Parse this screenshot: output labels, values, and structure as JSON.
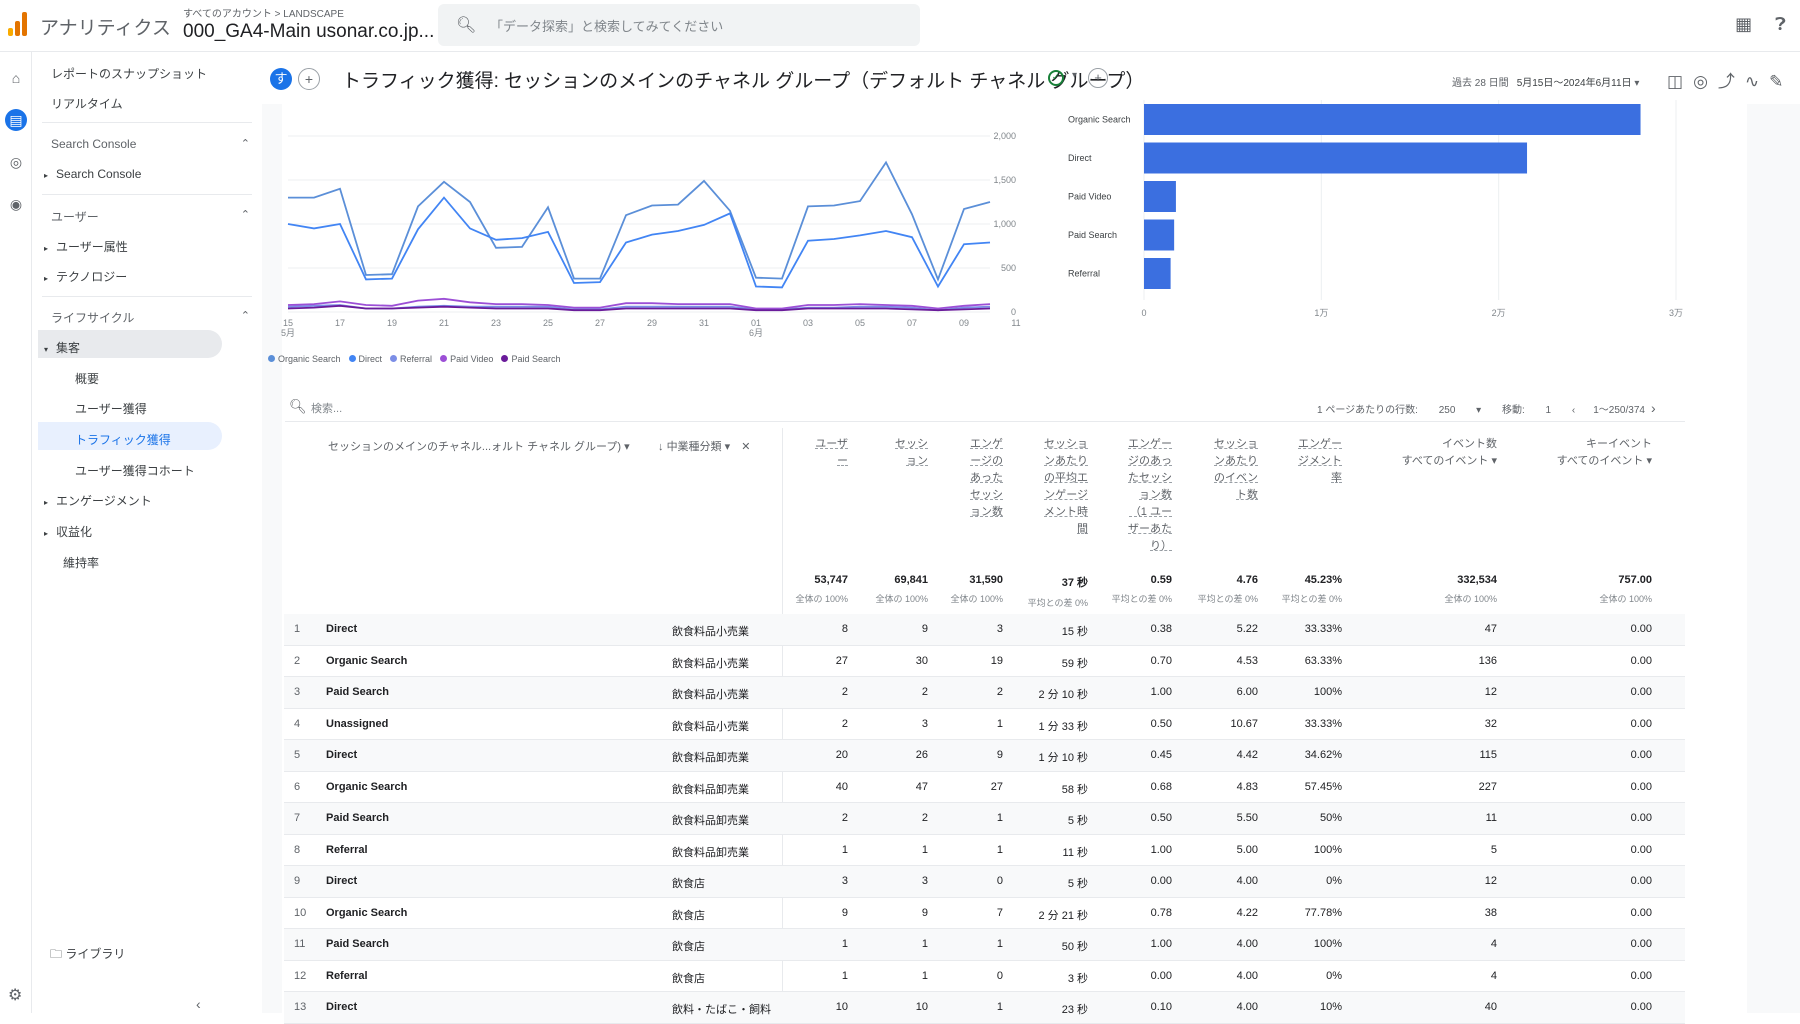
{
  "app": {
    "name": "アナリティクス",
    "breadcrumb": "すべてのアカウント > LANDSCAPE",
    "property": "000_GA4-Main usonar.co.jp...",
    "search_placeholder": "「データ探索」と検索してみてください"
  },
  "nav": {
    "snapshot": "レポートのスナップショット",
    "realtime": "リアルタイム",
    "sc_section": "Search Console",
    "sc_item": "Search Console",
    "user_section": "ユーザー",
    "user_attr": "ユーザー属性",
    "tech": "テクノロジー",
    "lifecycle": "ライフサイクル",
    "acquisition": "集客",
    "overview": "概要",
    "user_acq": "ユーザー獲得",
    "traffic_acq": "トラフィック獲得",
    "user_cohort": "ユーザー獲得コホート",
    "engagement": "エンゲージメント",
    "monetization": "収益化",
    "retention": "維持率",
    "library": "ライブラリ"
  },
  "header": {
    "badge": "す",
    "title": "トラフィック獲得: セッションのメインのチャネル グループ（デフォルト チャネル グループ）",
    "date_label": "過去 28 日間",
    "date_range": "5月15日～2024年6月11日"
  },
  "chart_data": [
    {
      "type": "line",
      "x": [
        "15 5月",
        "16",
        "17",
        "18",
        "19",
        "20",
        "21",
        "22",
        "23",
        "24",
        "25",
        "26",
        "27",
        "28",
        "29",
        "30",
        "31",
        "01 6月",
        "02",
        "03",
        "04",
        "05",
        "06",
        "07",
        "08",
        "09",
        "10",
        "11"
      ],
      "x_ticks": [
        "15\n5月",
        "17",
        "19",
        "21",
        "23",
        "25",
        "27",
        "29",
        "31",
        "01\n6月",
        "03",
        "05",
        "07",
        "09",
        "11"
      ],
      "y_ticks": [
        "2,000",
        "1,500",
        "1,000",
        "500",
        "0"
      ],
      "ylim": [
        0,
        2000
      ],
      "series": [
        {
          "name": "Organic Search",
          "color": "#5b8fd8",
          "values": [
            1300,
            1300,
            1400,
            420,
            430,
            1200,
            1480,
            1250,
            730,
            740,
            1190,
            380,
            380,
            1100,
            1210,
            1220,
            1490,
            1150,
            390,
            380,
            1200,
            1210,
            1260,
            1700,
            1110,
            370,
            1170,
            1250
          ]
        },
        {
          "name": "Direct",
          "color": "#4285f4",
          "values": [
            1000,
            950,
            1000,
            370,
            380,
            940,
            1300,
            950,
            820,
            840,
            910,
            330,
            340,
            790,
            880,
            920,
            990,
            1120,
            290,
            280,
            810,
            830,
            870,
            920,
            850,
            290,
            770,
            790
          ]
        },
        {
          "name": "Referral",
          "color": "#7c8ee6",
          "values": [
            60,
            70,
            80,
            40,
            40,
            60,
            70,
            60,
            60,
            60,
            60,
            30,
            30,
            60,
            60,
            60,
            60,
            60,
            30,
            30,
            50,
            50,
            60,
            60,
            50,
            20,
            50,
            60
          ]
        },
        {
          "name": "Paid Video",
          "color": "#9c4fd6",
          "values": [
            80,
            90,
            120,
            80,
            70,
            130,
            150,
            110,
            90,
            90,
            80,
            50,
            50,
            100,
            100,
            90,
            90,
            90,
            40,
            40,
            80,
            80,
            90,
            80,
            70,
            40,
            70,
            90
          ]
        },
        {
          "name": "Paid Search",
          "color": "#6a1b9a",
          "values": [
            40,
            50,
            70,
            40,
            40,
            50,
            60,
            50,
            40,
            40,
            40,
            20,
            20,
            40,
            40,
            40,
            40,
            40,
            20,
            20,
            40,
            40,
            40,
            40,
            30,
            20,
            30,
            40
          ]
        }
      ]
    },
    {
      "type": "bar",
      "orientation": "horizontal",
      "categories": [
        "Organic Search",
        "Direct",
        "Paid Video",
        "Paid Search",
        "Referral"
      ],
      "values": [
        28000,
        21600,
        1800,
        1700,
        1500
      ],
      "x_ticks": [
        "0",
        "1万",
        "2万",
        "3万"
      ],
      "xlim": [
        0,
        30000
      ],
      "color": "#3b6fe0"
    }
  ],
  "table": {
    "search_placeholder": "検索...",
    "rows_per_page_label": "1 ページあたりの行数:",
    "rows_per_page": "250",
    "goto_label": "移動:",
    "goto_value": "1",
    "range": "1～250/374",
    "dim1_header": "セッションのメインのチャネル...ォルト チャネル グループ)",
    "dim2_header": "中業種分類",
    "metrics": [
      {
        "h": [
          "ユーザ",
          "ー"
        ],
        "total": "53,747",
        "sub": "全体の 100%"
      },
      {
        "h": [
          "セッシ",
          "ョン"
        ],
        "total": "69,841",
        "sub": "全体の 100%"
      },
      {
        "h": [
          "エンゲ",
          "ージの",
          "あった",
          "セッシ",
          "ョン数"
        ],
        "total": "31,590",
        "sub": "全体の 100%"
      },
      {
        "h": [
          "セッショ",
          "ンあたり",
          "の平均エ",
          "ンゲージ",
          "メント時",
          "間"
        ],
        "total": "37 秒",
        "sub": "平均との差 0%"
      },
      {
        "h": [
          "エンゲー",
          "ジのあっ",
          "たセッシ",
          "ョン数",
          "（1 ユー",
          "ザーあた",
          "り）"
        ],
        "total": "0.59",
        "sub": "平均との差 0%"
      },
      {
        "h": [
          "セッショ",
          "ンあたり",
          "のイベン",
          "ト数"
        ],
        "total": "4.76",
        "sub": "平均との差 0%"
      },
      {
        "h": [
          "エンゲー",
          "ジメント",
          "率"
        ],
        "total": "45.23%",
        "sub": "平均との差 0%"
      },
      {
        "h": [
          "イベント数",
          "すべてのイベント ▾"
        ],
        "total": "332,534",
        "sub": "全体の 100%"
      },
      {
        "h": [
          "キーイベント",
          "すべてのイベント ▾"
        ],
        "total": "757.00",
        "sub": "全体の 100%"
      }
    ],
    "rows": [
      {
        "n": "1",
        "ch": "Direct",
        "sub": "飲食料品小売業",
        "v": [
          "8",
          "9",
          "3",
          "15 秒",
          "0.38",
          "5.22",
          "33.33%",
          "47",
          "0.00"
        ]
      },
      {
        "n": "2",
        "ch": "Organic Search",
        "sub": "飲食料品小売業",
        "v": [
          "27",
          "30",
          "19",
          "59 秒",
          "0.70",
          "4.53",
          "63.33%",
          "136",
          "0.00"
        ]
      },
      {
        "n": "3",
        "ch": "Paid Search",
        "sub": "飲食料品小売業",
        "v": [
          "2",
          "2",
          "2",
          "2 分 10 秒",
          "1.00",
          "6.00",
          "100%",
          "12",
          "0.00"
        ]
      },
      {
        "n": "4",
        "ch": "Unassigned",
        "sub": "飲食料品小売業",
        "v": [
          "2",
          "3",
          "1",
          "1 分 33 秒",
          "0.50",
          "10.67",
          "33.33%",
          "32",
          "0.00"
        ]
      },
      {
        "n": "5",
        "ch": "Direct",
        "sub": "飲食料品卸売業",
        "v": [
          "20",
          "26",
          "9",
          "1 分 10 秒",
          "0.45",
          "4.42",
          "34.62%",
          "115",
          "0.00"
        ]
      },
      {
        "n": "6",
        "ch": "Organic Search",
        "sub": "飲食料品卸売業",
        "v": [
          "40",
          "47",
          "27",
          "58 秒",
          "0.68",
          "4.83",
          "57.45%",
          "227",
          "0.00"
        ]
      },
      {
        "n": "7",
        "ch": "Paid Search",
        "sub": "飲食料品卸売業",
        "v": [
          "2",
          "2",
          "1",
          "5 秒",
          "0.50",
          "5.50",
          "50%",
          "11",
          "0.00"
        ]
      },
      {
        "n": "8",
        "ch": "Referral",
        "sub": "飲食料品卸売業",
        "v": [
          "1",
          "1",
          "1",
          "11 秒",
          "1.00",
          "5.00",
          "100%",
          "5",
          "0.00"
        ]
      },
      {
        "n": "9",
        "ch": "Direct",
        "sub": "飲食店",
        "v": [
          "3",
          "3",
          "0",
          "5 秒",
          "0.00",
          "4.00",
          "0%",
          "12",
          "0.00"
        ]
      },
      {
        "n": "10",
        "ch": "Organic Search",
        "sub": "飲食店",
        "v": [
          "9",
          "9",
          "7",
          "2 分 21 秒",
          "0.78",
          "4.22",
          "77.78%",
          "38",
          "0.00"
        ]
      },
      {
        "n": "11",
        "ch": "Paid Search",
        "sub": "飲食店",
        "v": [
          "1",
          "1",
          "1",
          "50 秒",
          "1.00",
          "4.00",
          "100%",
          "4",
          "0.00"
        ]
      },
      {
        "n": "12",
        "ch": "Referral",
        "sub": "飲食店",
        "v": [
          "1",
          "1",
          "0",
          "3 秒",
          "0.00",
          "4.00",
          "0%",
          "4",
          "0.00"
        ]
      },
      {
        "n": "13",
        "ch": "Direct",
        "sub": "飲料・たばこ・飼料",
        "v": [
          "10",
          "10",
          "1",
          "23 秒",
          "0.10",
          "4.00",
          "10%",
          "40",
          "0.00"
        ]
      }
    ]
  }
}
